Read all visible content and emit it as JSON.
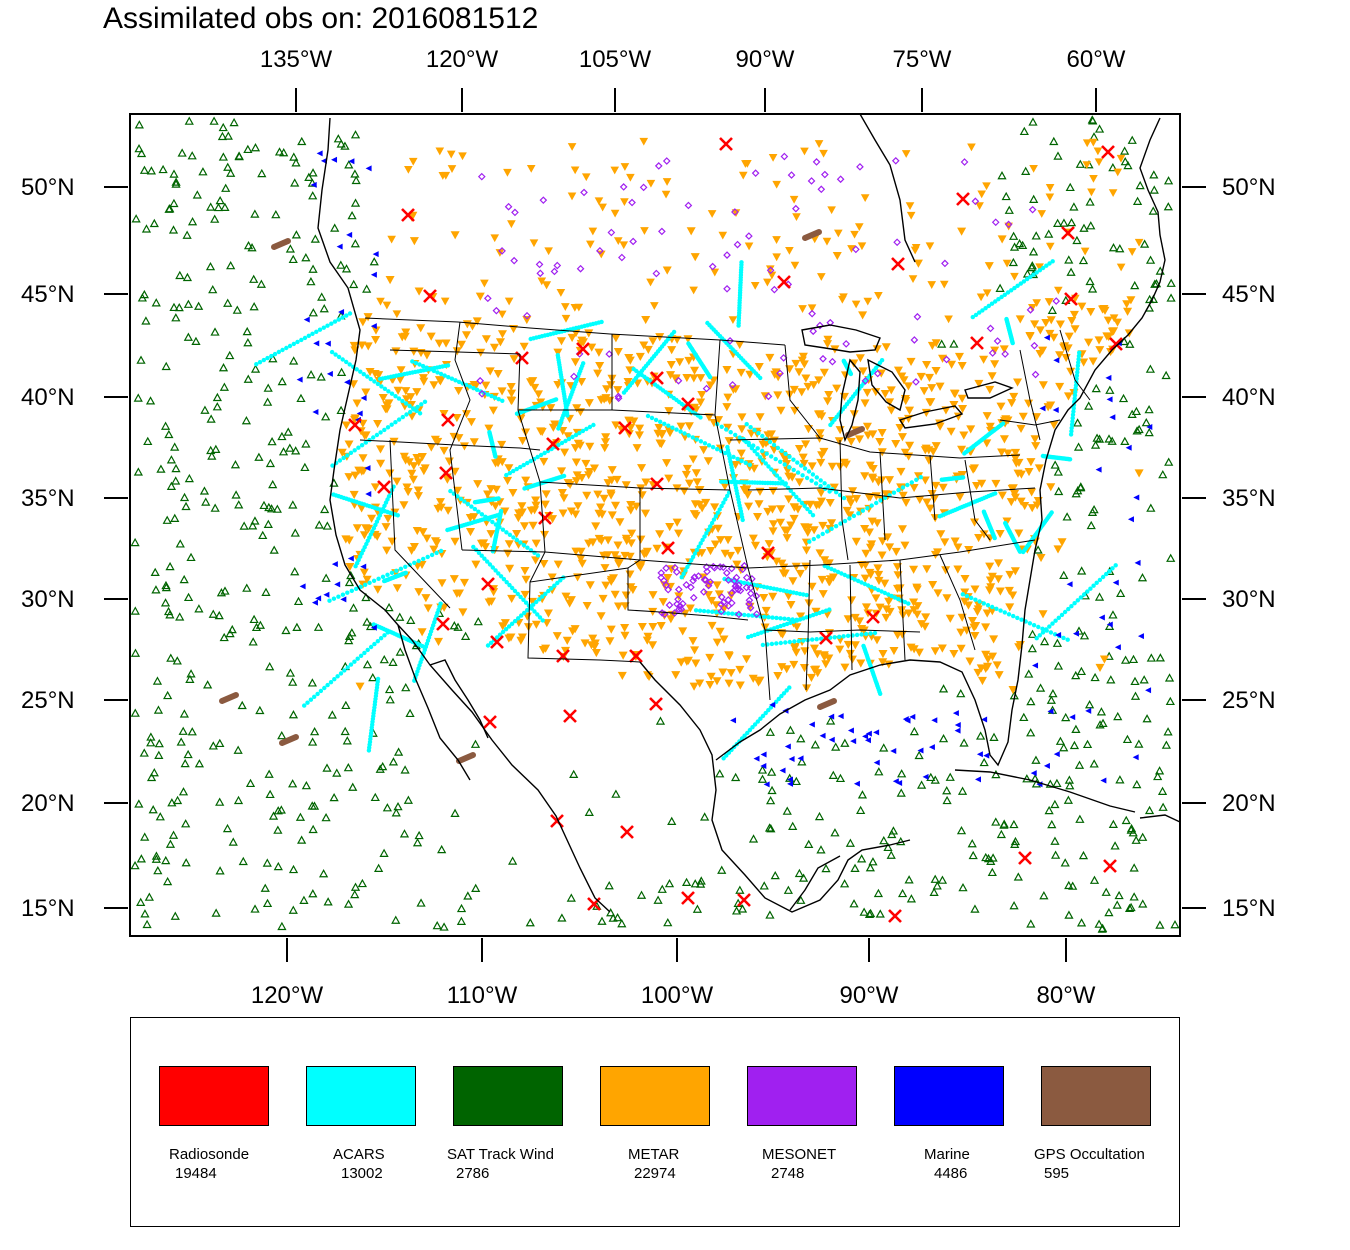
{
  "title": "Assimilated obs on: 2016081512",
  "axes": {
    "top_lon_labels": [
      "135°W",
      "120°W",
      "105°W",
      "90°W",
      "75°W",
      "60°W"
    ],
    "bottom_lon_labels": [
      "120°W",
      "110°W",
      "100°W",
      "90°W",
      "80°W"
    ],
    "lat_labels": [
      "50°N",
      "45°N",
      "40°N",
      "35°N",
      "30°N",
      "25°N",
      "20°N",
      "15°N"
    ]
  },
  "legend": [
    {
      "label": "Radiosonde",
      "count": "19484",
      "color": "#ff0000"
    },
    {
      "label": "ACARS",
      "count": "13002",
      "color": "#00ffff"
    },
    {
      "label": "SAT Track Wind",
      "count": "2786",
      "color": "#006400"
    },
    {
      "label": "METAR",
      "count": "22974",
      "color": "#ffa500"
    },
    {
      "label": "MESONET",
      "count": "2748",
      "color": "#a020f0"
    },
    {
      "label": "Marine",
      "count": "4486",
      "color": "#0000ff"
    },
    {
      "label": "GPS Occultation",
      "count": "595",
      "color": "#8b5a40"
    }
  ],
  "marker_icons": {
    "Radiosonde": "x-mark-icon",
    "ACARS": "dot-icon",
    "SAT Track Wind": "open-triangle-icon",
    "METAR": "inverted-triangle-icon",
    "MESONET": "diamond-icon",
    "Marine": "left-triangle-icon",
    "GPS Occultation": "segment-icon"
  }
}
